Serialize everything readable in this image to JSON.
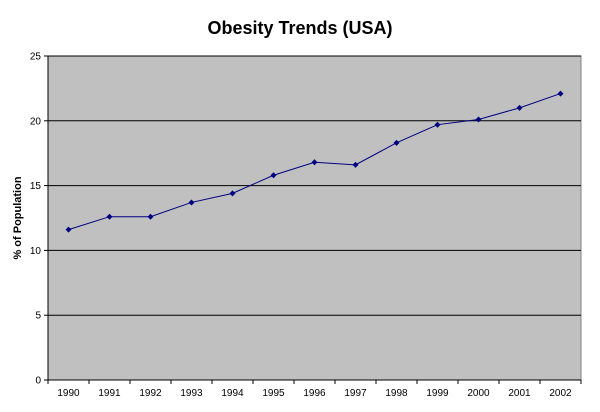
{
  "chart_data": {
    "type": "line",
    "title": "Obesity Trends (USA)",
    "xlabel": "",
    "ylabel": "% of Population",
    "categories": [
      "1990",
      "1991",
      "1992",
      "1993",
      "1994",
      "1995",
      "1996",
      "1997",
      "1998",
      "1999",
      "2000",
      "2001",
      "2002"
    ],
    "series": [
      {
        "values": [
          11.6,
          12.6,
          12.6,
          13.7,
          14.4,
          15.8,
          16.8,
          16.6,
          18.3,
          19.7,
          20.1,
          21.0,
          22.1
        ]
      }
    ],
    "ylim": [
      0,
      25
    ],
    "yticks": [
      0,
      5,
      10,
      15,
      20,
      25
    ],
    "grid": true,
    "legend": "none",
    "colors": {
      "plot_background": "#c0c0c0",
      "line": "#000080",
      "gridline": "#000000"
    }
  }
}
